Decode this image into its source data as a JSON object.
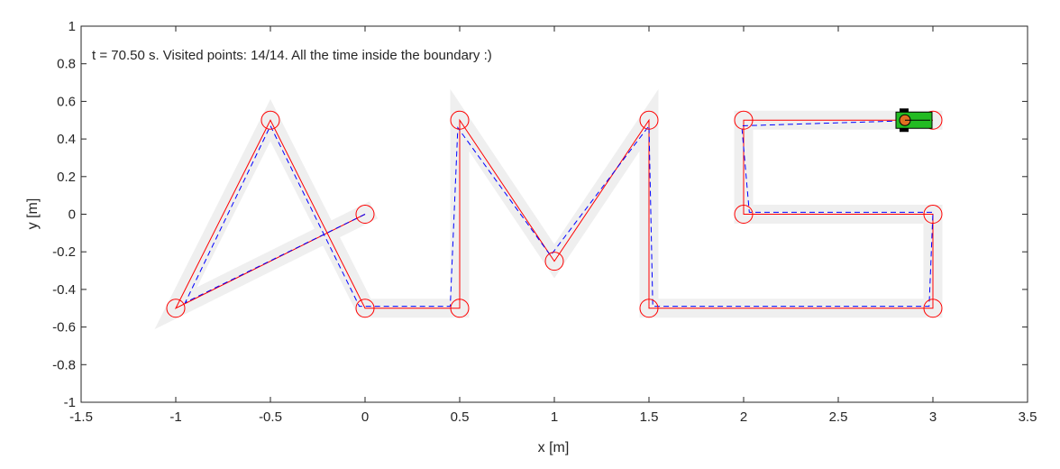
{
  "chart_data": {
    "type": "line",
    "title": "",
    "annotation": "t =  70.50 s. Visited points: 14/14. All the time inside the boundary :)",
    "xlabel": "x [m]",
    "ylabel": "y [m]",
    "xlim": [
      -1.5,
      3.5
    ],
    "ylim": [
      -1,
      1
    ],
    "xticks": [
      -1.5,
      -1,
      -0.5,
      0,
      0.5,
      1,
      1.5,
      2,
      2.5,
      3,
      3.5
    ],
    "yticks": [
      -1,
      -0.8,
      -0.6,
      -0.4,
      -0.2,
      0,
      0.2,
      0.4,
      0.6,
      0.8,
      1
    ],
    "xtick_labels": [
      "-1.5",
      "-1",
      "-0.5",
      "0",
      "0.5",
      "1",
      "1.5",
      "2",
      "2.5",
      "3",
      "3.5"
    ],
    "ytick_labels": [
      "-1",
      "-0.8",
      "-0.6",
      "-0.4",
      "-0.2",
      "0",
      "0.2",
      "0.4",
      "0.6",
      "0.8",
      "1"
    ],
    "grid": false,
    "boundary_halfwidth": 0.05,
    "series": [
      {
        "role": "reference-path",
        "color": "#ff0000",
        "style": "solid",
        "x": [
          0,
          -1,
          -0.5,
          0,
          0.5,
          0.5,
          1,
          1.5,
          1.5,
          3,
          3,
          2,
          2,
          3
        ],
        "y": [
          0,
          -0.5,
          0.5,
          -0.5,
          -0.5,
          0.5,
          -0.25,
          0.5,
          -0.5,
          -0.5,
          0,
          0,
          0.5,
          0.5
        ]
      },
      {
        "role": "actual-trajectory",
        "color": "#0000ff",
        "style": "dashed",
        "x": [
          0,
          -0.95,
          -0.5,
          -0.03,
          0.45,
          0.49,
          0.98,
          1.5,
          1.52,
          2.98,
          3.0,
          2.03,
          1.99,
          2.95
        ],
        "y": [
          0,
          -0.47,
          0.47,
          -0.49,
          -0.49,
          0.46,
          -0.22,
          0.47,
          -0.49,
          -0.49,
          0.01,
          0.01,
          0.47,
          0.5
        ]
      }
    ],
    "waypoints": {
      "color": "#ff0000",
      "x": [
        0,
        -1,
        -0.5,
        0,
        0.5,
        0.5,
        1,
        1.5,
        1.5,
        3,
        3,
        2,
        2,
        3
      ],
      "y": [
        0,
        -0.5,
        0.5,
        -0.5,
        -0.5,
        0.5,
        -0.25,
        0.5,
        -0.5,
        -0.5,
        0,
        0,
        0.5,
        0.5
      ]
    },
    "robot": {
      "x": 2.9,
      "y": 0.5,
      "body_color": "#22bb22",
      "wheel_color": "#e07020"
    }
  }
}
